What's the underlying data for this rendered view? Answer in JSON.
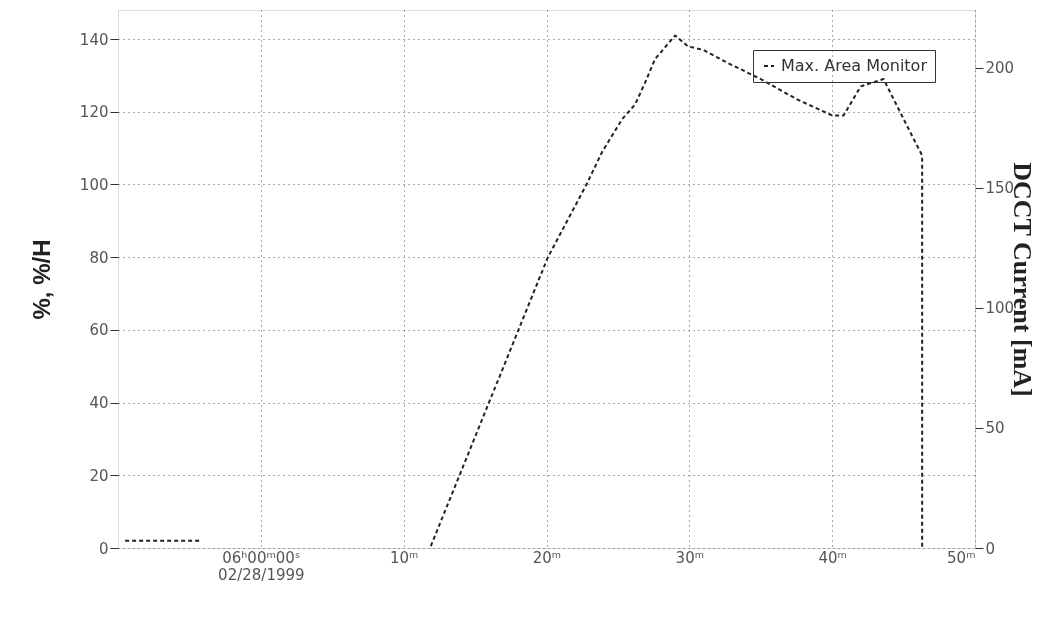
{
  "chart_data": {
    "type": "line",
    "ylabel": "%, %/H",
    "y2label": "DCCT Current [mA]",
    "xlim": [
      -10,
      50
    ],
    "ylim": [
      0,
      148
    ],
    "y2lim": [
      0,
      224
    ],
    "xticks": [
      {
        "value": 0,
        "label": "06ʰ00ᵐ00ˢ\n02/28/1999"
      },
      {
        "value": 10,
        "label": "10ᵐ"
      },
      {
        "value": 20,
        "label": "20ᵐ"
      },
      {
        "value": 30,
        "label": "30ᵐ"
      },
      {
        "value": 40,
        "label": "40ᵐ"
      },
      {
        "value": 50,
        "label": "50ᵐ"
      }
    ],
    "yticks": [
      0,
      20,
      40,
      60,
      80,
      100,
      120,
      140
    ],
    "y2ticks": [
      0,
      50,
      100,
      150,
      200
    ],
    "series": [
      {
        "name": "Max. Area Monitor",
        "color": "#222222",
        "x": [
          11.9,
          12.3,
          20.1,
          22.8,
          23.9,
          25.3,
          26.2,
          26.9,
          27.6,
          29.0,
          29.9,
          31.0,
          32.4,
          35.0,
          37.5,
          40.0,
          40.8,
          41.4,
          42.0,
          43.6,
          44.3,
          45.9,
          46.3,
          46.3
        ],
        "values": [
          0.5,
          4.4,
          80,
          100,
          109,
          118,
          122,
          128,
          134.5,
          141,
          138,
          137,
          134,
          129,
          123.5,
          119,
          119,
          123,
          127,
          129,
          123.5,
          111,
          108,
          0
        ]
      },
      {
        "color": "#222222",
        "x": [
          -9.5,
          -4.3
        ],
        "values": [
          2,
          2
        ]
      }
    ],
    "grid": true,
    "legend": "top right",
    "line_style": "dashed",
    "marker": "none"
  }
}
